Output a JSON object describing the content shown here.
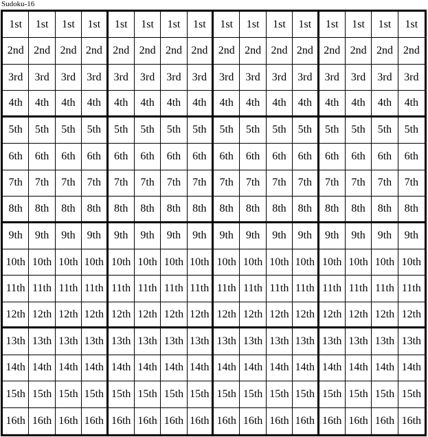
{
  "title": "Sudoku-16",
  "colors": {
    "background": "#ffffff",
    "grid_line": "#000000",
    "text": "#000000"
  },
  "grid": {
    "rows": 16,
    "cols": 16,
    "box_rows": 4,
    "box_cols": 4,
    "row_labels": [
      "1st",
      "2nd",
      "3rd",
      "4th",
      "5th",
      "6th",
      "7th",
      "8th",
      "9th",
      "10th",
      "11th",
      "12th",
      "13th",
      "14th",
      "15th",
      "16th"
    ]
  }
}
